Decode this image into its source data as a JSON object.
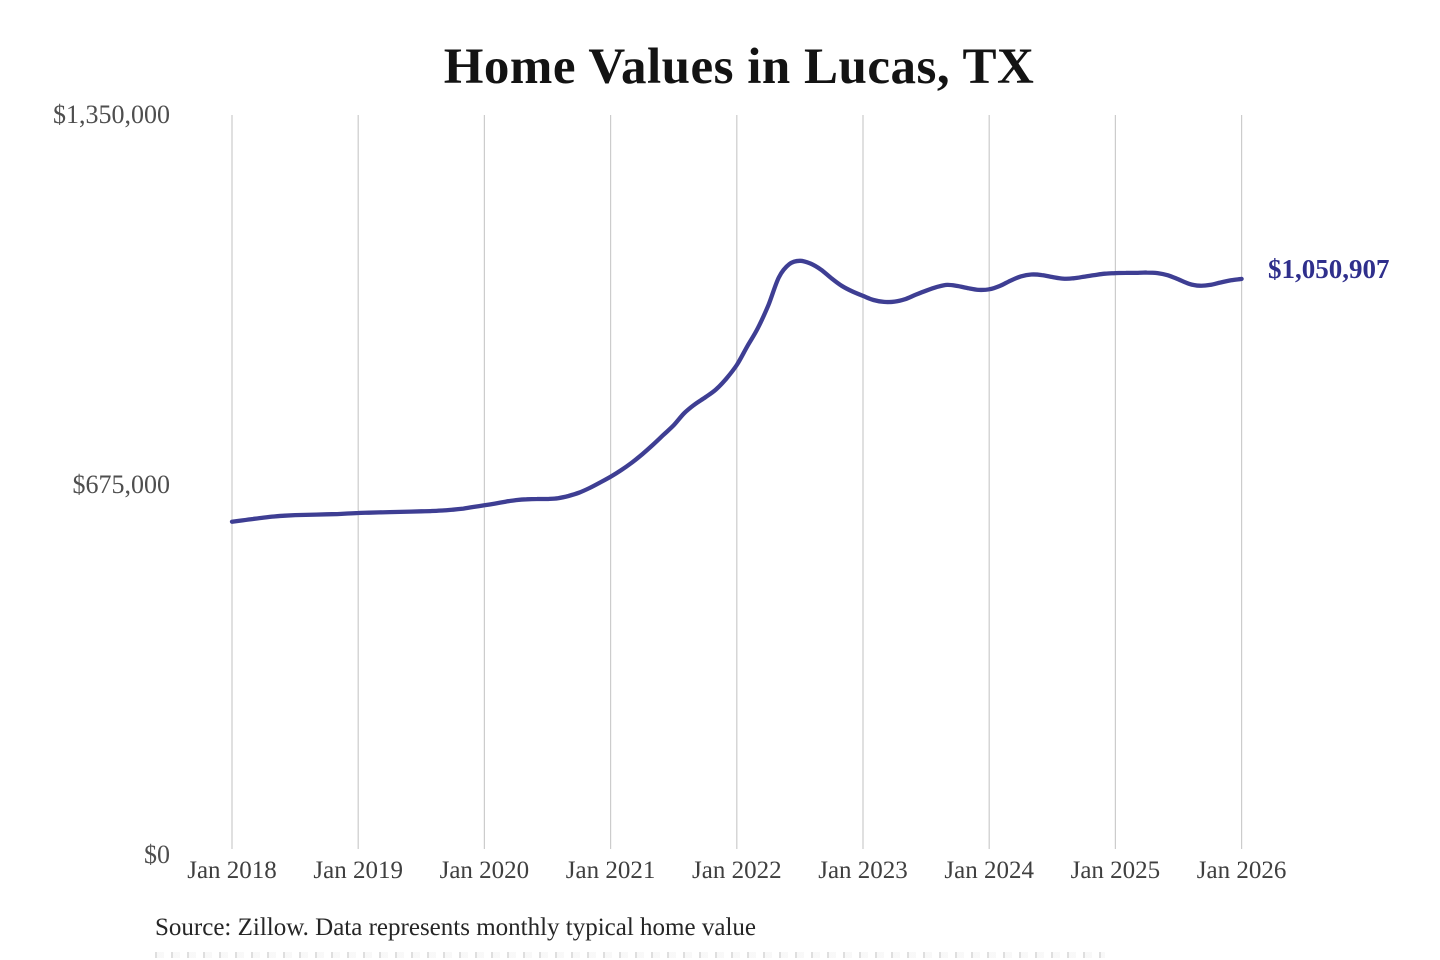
{
  "page": {
    "background": "#ffffff"
  },
  "header": {
    "title": "Home Values in Lucas, TX"
  },
  "y_axis": {
    "ticks": [
      {
        "label": "$1,350,000",
        "value": 1350000
      },
      {
        "label": "$675,000",
        "value": 675000
      },
      {
        "label": "$0",
        "value": 0
      }
    ]
  },
  "x_axis": {
    "ticks": [
      "Jan 2018",
      "Jan 2019",
      "Jan 2020",
      "Jan 2021",
      "Jan 2022",
      "Jan 2023",
      "Jan 2024",
      "Jan 2025",
      "Jan 2026"
    ]
  },
  "chart": {
    "end_label": "$1,050,907",
    "line_color": "#3e3e93",
    "grid_color": "#cccccc",
    "end_label_color": "#2f2f8c"
  },
  "footer": {
    "source": "Source: Zillow. Data represents monthly typical home value"
  },
  "chart_data": {
    "type": "line",
    "title": "Home Values in Lucas, TX",
    "unit": "USD",
    "frequency": "monthly",
    "x_start": "2018-01",
    "x_end": "2026-01",
    "x_tick_labels": [
      "Jan 2018",
      "Jan 2019",
      "Jan 2020",
      "Jan 2021",
      "Jan 2022",
      "Jan 2023",
      "Jan 2024",
      "Jan 2025",
      "Jan 2026"
    ],
    "ylim": [
      0,
      1350000
    ],
    "y_tick_values": [
      0,
      675000,
      1350000
    ],
    "grid": "vertical-only",
    "legend": "none",
    "final_value": 1050907,
    "final_value_label": "$1,050,907",
    "values": [
      608000,
      610500,
      613000,
      615500,
      617500,
      619000,
      620000,
      620500,
      621000,
      621500,
      622000,
      623000,
      624000,
      624500,
      625000,
      625500,
      626000,
      626500,
      627000,
      627500,
      628500,
      630000,
      632000,
      635000,
      638000,
      641000,
      644500,
      647500,
      649000,
      649500,
      649500,
      651000,
      655000,
      661000,
      669500,
      679500,
      690000,
      702000,
      715500,
      731000,
      748000,
      766000,
      784000,
      806000,
      822000,
      835000,
      849000,
      869000,
      894000,
      928000,
      961000,
      1003000,
      1054000,
      1078000,
      1084000,
      1079000,
      1068000,
      1052000,
      1038000,
      1028000,
      1020000,
      1012500,
      1009000,
      1009500,
      1014000,
      1022000,
      1029500,
      1036000,
      1040000,
      1038000,
      1034000,
      1031000,
      1032000,
      1038000,
      1047500,
      1055500,
      1059000,
      1058000,
      1054500,
      1051500,
      1052000,
      1055000,
      1058000,
      1060500,
      1061500,
      1062000,
      1062000,
      1062500,
      1061500,
      1057500,
      1050000,
      1042000,
      1038500,
      1040000,
      1044500,
      1048500,
      1050907
    ]
  }
}
